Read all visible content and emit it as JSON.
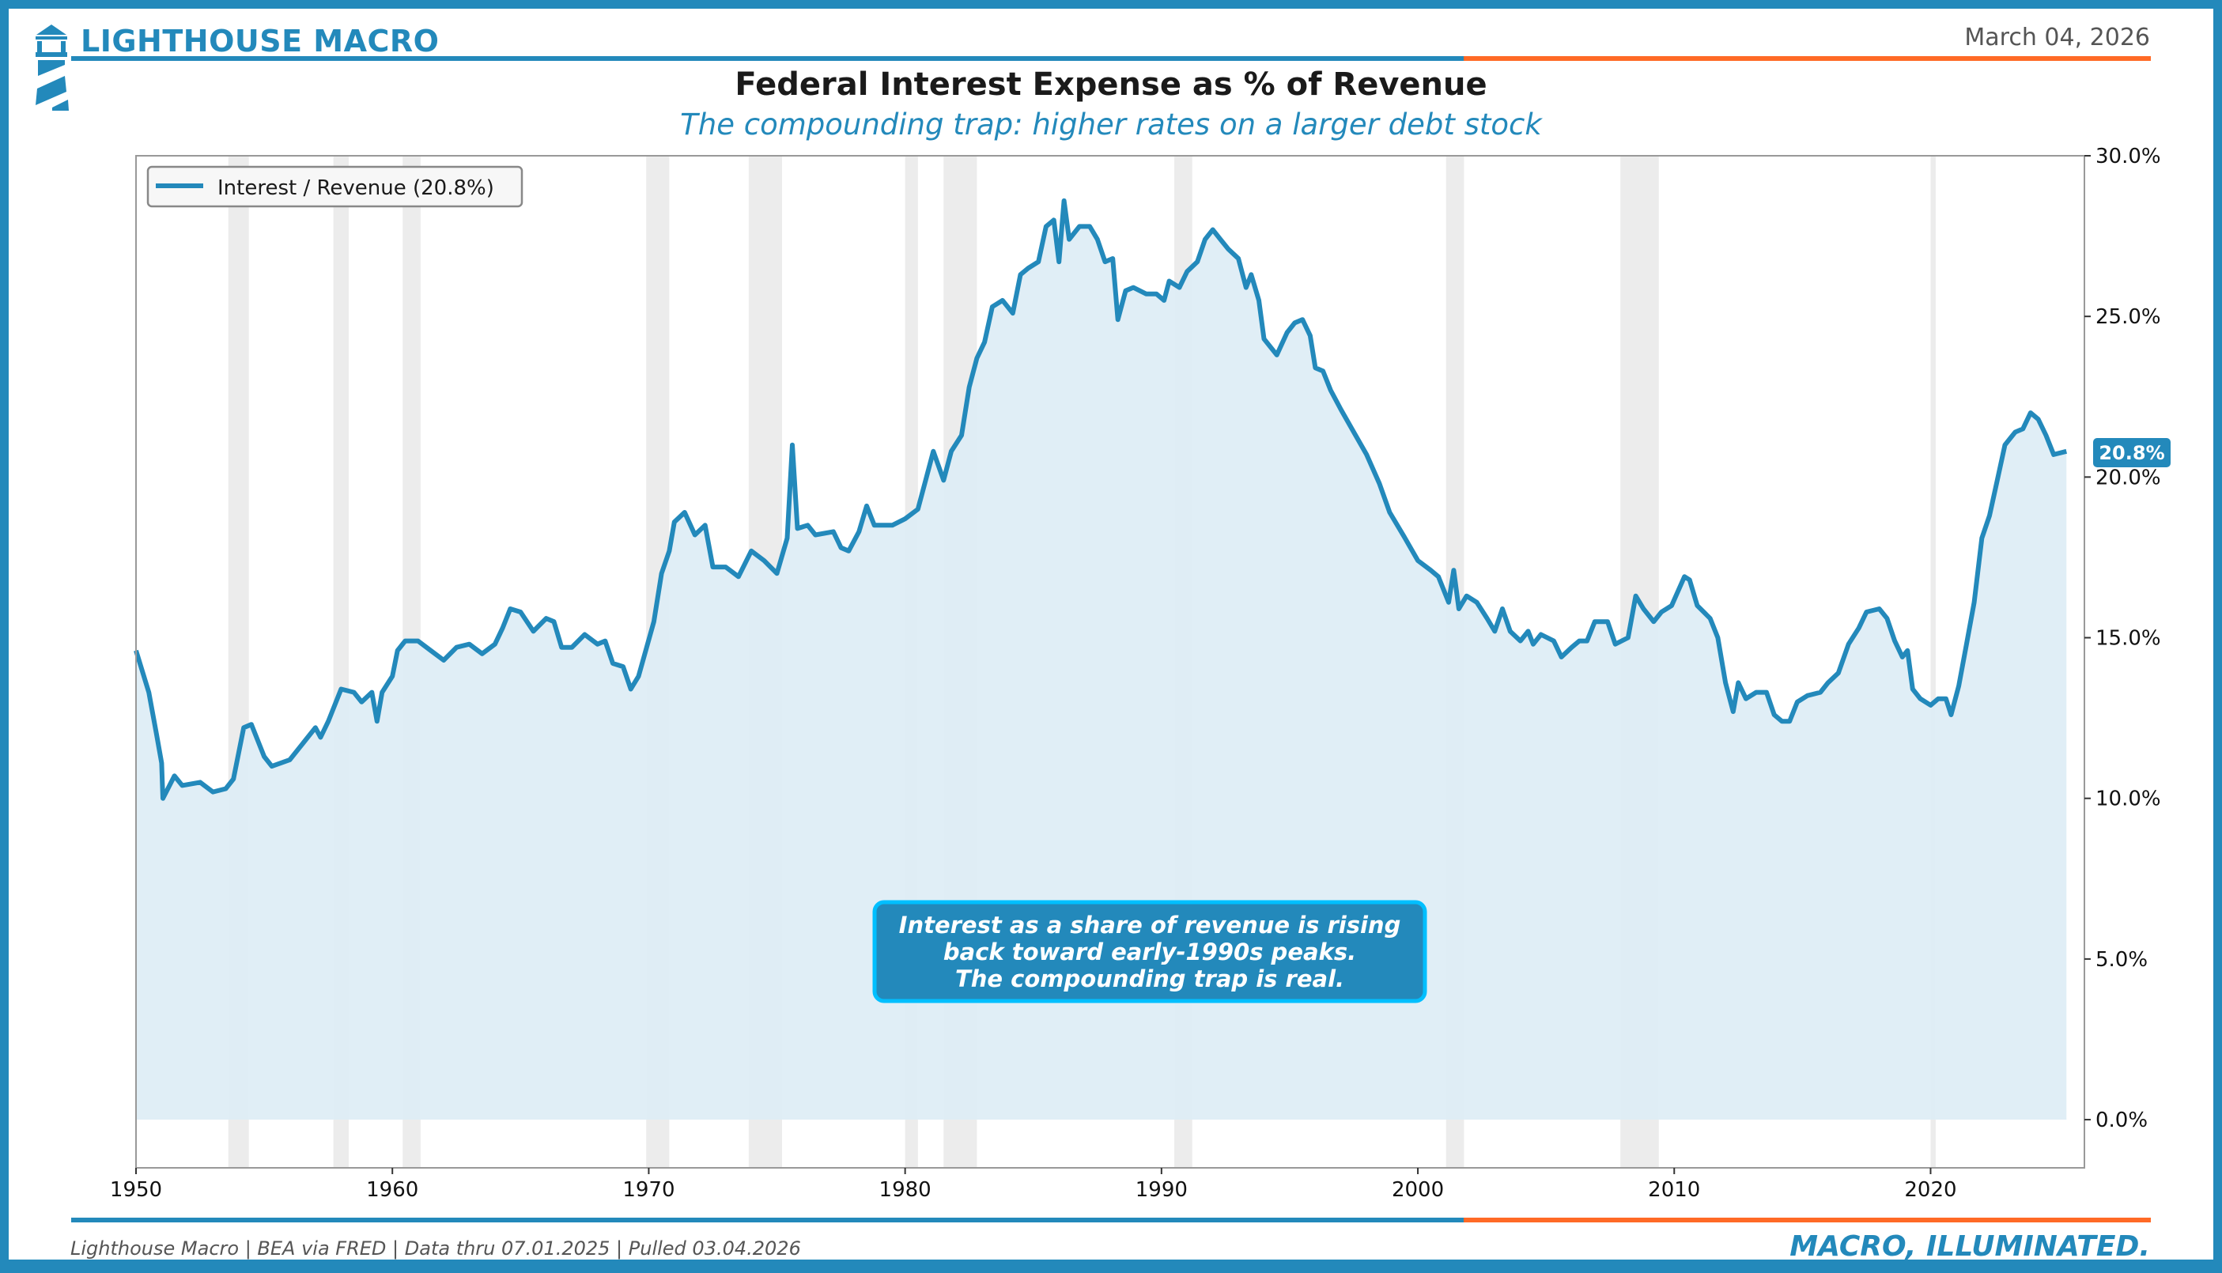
{
  "header": {
    "brand": "LIGHTHOUSE MACRO",
    "date": "March 04, 2026"
  },
  "title": "Federal Interest Expense as % of Revenue",
  "subtitle": "The compounding trap: higher rates on a larger debt stock",
  "footer": {
    "source": "Lighthouse Macro | BEA via FRED | Data thru 07.01.2025 | Pulled 03.04.2026",
    "tagline": "MACRO, ILLUMINATED."
  },
  "colors": {
    "brand": "#2389bb",
    "accent": "#ff6a26",
    "fill": "#deedf5",
    "recession": "#e0e0e0"
  },
  "chart_data": {
    "type": "area",
    "title": "Federal Interest Expense as % of Revenue",
    "xlabel": "",
    "ylabel": "",
    "xlim": [
      1950,
      2026
    ],
    "ylim": [
      -1.5,
      30
    ],
    "x_ticks": [
      "1950",
      "1960",
      "1970",
      "1980",
      "1990",
      "2000",
      "2010",
      "2020"
    ],
    "y_ticks": [
      "0.0%",
      "5.0%",
      "10.0%",
      "15.0%",
      "20.0%",
      "25.0%",
      "30.0%"
    ],
    "y_axis_side": "right",
    "legend": {
      "placement": "top-left",
      "entries": [
        "Interest / Revenue (20.8%)"
      ]
    },
    "end_label": "20.8%",
    "annotation": [
      "Interest as a share of revenue is rising",
      "back toward early-1990s peaks.",
      "The compounding trap is real."
    ],
    "recessions": [
      [
        1953.6,
        1954.4
      ],
      [
        1957.7,
        1958.3
      ],
      [
        1960.4,
        1961.1
      ],
      [
        1969.9,
        1970.8
      ],
      [
        1973.9,
        1975.2
      ],
      [
        1980.0,
        1980.5
      ],
      [
        1981.5,
        1982.8
      ],
      [
        1990.5,
        1991.2
      ],
      [
        2001.1,
        2001.8
      ],
      [
        2007.9,
        2009.4
      ],
      [
        2020.0,
        2020.2
      ]
    ],
    "series": [
      {
        "name": "Interest / Revenue",
        "points": [
          [
            1950.0,
            14.6
          ],
          [
            1950.5,
            13.3
          ],
          [
            1950.8,
            12.0
          ],
          [
            1951.0,
            11.1
          ],
          [
            1951.05,
            10.0
          ],
          [
            1951.5,
            10.7
          ],
          [
            1951.8,
            10.4
          ],
          [
            1952.5,
            10.5
          ],
          [
            1953.0,
            10.2
          ],
          [
            1953.5,
            10.3
          ],
          [
            1953.8,
            10.6
          ],
          [
            1954.2,
            12.2
          ],
          [
            1954.5,
            12.3
          ],
          [
            1955.0,
            11.3
          ],
          [
            1955.3,
            11.0
          ],
          [
            1956.0,
            11.2
          ],
          [
            1956.5,
            11.7
          ],
          [
            1957.0,
            12.2
          ],
          [
            1957.2,
            11.9
          ],
          [
            1957.5,
            12.4
          ],
          [
            1958.0,
            13.4
          ],
          [
            1958.5,
            13.3
          ],
          [
            1958.8,
            13.0
          ],
          [
            1959.2,
            13.3
          ],
          [
            1959.4,
            12.4
          ],
          [
            1959.6,
            13.3
          ],
          [
            1960.0,
            13.8
          ],
          [
            1960.2,
            14.6
          ],
          [
            1960.5,
            14.9
          ],
          [
            1961.0,
            14.9
          ],
          [
            1961.5,
            14.6
          ],
          [
            1962.0,
            14.3
          ],
          [
            1962.5,
            14.7
          ],
          [
            1963.0,
            14.8
          ],
          [
            1963.5,
            14.5
          ],
          [
            1964.0,
            14.8
          ],
          [
            1964.3,
            15.3
          ],
          [
            1964.6,
            15.9
          ],
          [
            1965.0,
            15.8
          ],
          [
            1965.5,
            15.2
          ],
          [
            1966.0,
            15.6
          ],
          [
            1966.3,
            15.5
          ],
          [
            1966.6,
            14.7
          ],
          [
            1967.0,
            14.7
          ],
          [
            1967.5,
            15.1
          ],
          [
            1968.0,
            14.8
          ],
          [
            1968.3,
            14.9
          ],
          [
            1968.6,
            14.2
          ],
          [
            1969.0,
            14.1
          ],
          [
            1969.3,
            13.4
          ],
          [
            1969.6,
            13.8
          ],
          [
            1970.2,
            15.5
          ],
          [
            1970.5,
            17.0
          ],
          [
            1970.8,
            17.7
          ],
          [
            1971.0,
            18.6
          ],
          [
            1971.4,
            18.9
          ],
          [
            1971.8,
            18.2
          ],
          [
            1972.2,
            18.5
          ],
          [
            1972.5,
            17.2
          ],
          [
            1973.0,
            17.2
          ],
          [
            1973.5,
            16.9
          ],
          [
            1974.0,
            17.7
          ],
          [
            1974.5,
            17.4
          ],
          [
            1975.0,
            17.0
          ],
          [
            1975.4,
            18.1
          ],
          [
            1975.6,
            21.0
          ],
          [
            1975.8,
            18.4
          ],
          [
            1976.2,
            18.5
          ],
          [
            1976.5,
            18.2
          ],
          [
            1977.2,
            18.3
          ],
          [
            1977.5,
            17.8
          ],
          [
            1977.8,
            17.7
          ],
          [
            1978.2,
            18.3
          ],
          [
            1978.5,
            19.1
          ],
          [
            1978.8,
            18.5
          ],
          [
            1979.5,
            18.5
          ],
          [
            1980.0,
            18.7
          ],
          [
            1980.5,
            19.0
          ],
          [
            1980.8,
            19.9
          ],
          [
            1981.1,
            20.8
          ],
          [
            1981.5,
            19.9
          ],
          [
            1981.8,
            20.8
          ],
          [
            1982.2,
            21.3
          ],
          [
            1982.5,
            22.8
          ],
          [
            1982.8,
            23.7
          ],
          [
            1983.1,
            24.2
          ],
          [
            1983.4,
            25.3
          ],
          [
            1983.8,
            25.5
          ],
          [
            1984.2,
            25.1
          ],
          [
            1984.5,
            26.3
          ],
          [
            1984.8,
            26.5
          ],
          [
            1985.2,
            26.7
          ],
          [
            1985.5,
            27.8
          ],
          [
            1985.8,
            28.0
          ],
          [
            1986.0,
            26.7
          ],
          [
            1986.2,
            28.6
          ],
          [
            1986.4,
            27.4
          ],
          [
            1986.8,
            27.8
          ],
          [
            1987.2,
            27.8
          ],
          [
            1987.5,
            27.4
          ],
          [
            1987.8,
            26.7
          ],
          [
            1988.1,
            26.8
          ],
          [
            1988.3,
            24.9
          ],
          [
            1988.6,
            25.8
          ],
          [
            1988.9,
            25.9
          ],
          [
            1989.4,
            25.7
          ],
          [
            1989.8,
            25.7
          ],
          [
            1990.1,
            25.5
          ],
          [
            1990.3,
            26.1
          ],
          [
            1990.7,
            25.9
          ],
          [
            1991.0,
            26.4
          ],
          [
            1991.4,
            26.7
          ],
          [
            1991.7,
            27.4
          ],
          [
            1992.0,
            27.7
          ],
          [
            1992.3,
            27.4
          ],
          [
            1992.6,
            27.1
          ],
          [
            1993.0,
            26.8
          ],
          [
            1993.3,
            25.9
          ],
          [
            1993.5,
            26.3
          ],
          [
            1993.8,
            25.5
          ],
          [
            1994.0,
            24.3
          ],
          [
            1994.5,
            23.8
          ],
          [
            1994.9,
            24.5
          ],
          [
            1995.2,
            24.8
          ],
          [
            1995.5,
            24.9
          ],
          [
            1995.8,
            24.4
          ],
          [
            1996.0,
            23.4
          ],
          [
            1996.3,
            23.3
          ],
          [
            1996.6,
            22.7
          ],
          [
            1997.0,
            22.1
          ],
          [
            1997.5,
            21.4
          ],
          [
            1998.0,
            20.7
          ],
          [
            1998.5,
            19.8
          ],
          [
            1998.9,
            18.9
          ],
          [
            1999.5,
            18.1
          ],
          [
            2000.0,
            17.4
          ],
          [
            2000.5,
            17.1
          ],
          [
            2000.8,
            16.9
          ],
          [
            2001.2,
            16.1
          ],
          [
            2001.4,
            17.1
          ],
          [
            2001.6,
            15.9
          ],
          [
            2001.9,
            16.3
          ],
          [
            2002.3,
            16.1
          ],
          [
            2002.7,
            15.6
          ],
          [
            2003.0,
            15.2
          ],
          [
            2003.3,
            15.9
          ],
          [
            2003.6,
            15.2
          ],
          [
            2004.0,
            14.9
          ],
          [
            2004.3,
            15.2
          ],
          [
            2004.5,
            14.8
          ],
          [
            2004.8,
            15.1
          ],
          [
            2005.3,
            14.9
          ],
          [
            2005.6,
            14.4
          ],
          [
            2006.0,
            14.7
          ],
          [
            2006.3,
            14.9
          ],
          [
            2006.6,
            14.9
          ],
          [
            2006.9,
            15.5
          ],
          [
            2007.4,
            15.5
          ],
          [
            2007.7,
            14.8
          ],
          [
            2008.2,
            15.0
          ],
          [
            2008.5,
            16.3
          ],
          [
            2008.8,
            15.9
          ],
          [
            2009.2,
            15.5
          ],
          [
            2009.5,
            15.8
          ],
          [
            2009.9,
            16.0
          ],
          [
            2010.4,
            16.9
          ],
          [
            2010.6,
            16.8
          ],
          [
            2010.9,
            16.0
          ],
          [
            2011.4,
            15.6
          ],
          [
            2011.7,
            15.0
          ],
          [
            2012.0,
            13.6
          ],
          [
            2012.3,
            12.7
          ],
          [
            2012.5,
            13.6
          ],
          [
            2012.8,
            13.1
          ],
          [
            2013.2,
            13.3
          ],
          [
            2013.6,
            13.3
          ],
          [
            2013.9,
            12.6
          ],
          [
            2014.2,
            12.4
          ],
          [
            2014.5,
            12.4
          ],
          [
            2014.8,
            13.0
          ],
          [
            2015.2,
            13.2
          ],
          [
            2015.7,
            13.3
          ],
          [
            2016.0,
            13.6
          ],
          [
            2016.4,
            13.9
          ],
          [
            2016.8,
            14.8
          ],
          [
            2017.2,
            15.3
          ],
          [
            2017.5,
            15.8
          ],
          [
            2018.0,
            15.9
          ],
          [
            2018.3,
            15.6
          ],
          [
            2018.6,
            14.9
          ],
          [
            2018.9,
            14.4
          ],
          [
            2019.1,
            14.6
          ],
          [
            2019.3,
            13.4
          ],
          [
            2019.6,
            13.1
          ],
          [
            2020.0,
            12.9
          ],
          [
            2020.3,
            13.1
          ],
          [
            2020.6,
            13.1
          ],
          [
            2020.8,
            12.6
          ],
          [
            2021.1,
            13.5
          ],
          [
            2021.4,
            14.8
          ],
          [
            2021.7,
            16.1
          ],
          [
            2022.0,
            18.1
          ],
          [
            2022.3,
            18.8
          ],
          [
            2022.6,
            19.9
          ],
          [
            2022.9,
            21.0
          ],
          [
            2023.3,
            21.4
          ],
          [
            2023.6,
            21.5
          ],
          [
            2023.9,
            22.0
          ],
          [
            2024.2,
            21.8
          ],
          [
            2024.5,
            21.3
          ],
          [
            2024.8,
            20.7
          ],
          [
            2025.3,
            20.8
          ]
        ]
      }
    ]
  }
}
